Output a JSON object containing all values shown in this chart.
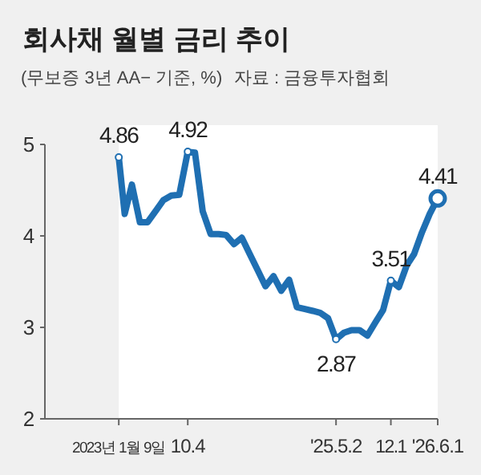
{
  "chart_data": {
    "type": "line",
    "title": "회사채 월별 금리 추이",
    "subtitle": "(무보증 3년 AA− 기준, %)",
    "annotations": [
      "자료 : 금융투자협회",
      {
        "text": "4.86",
        "x": "2023-01-09",
        "y": 4.86
      },
      {
        "text": "4.92",
        "x": "2023-10-04",
        "y": 4.92
      },
      {
        "text": "2.87",
        "x": "2025-05-02",
        "y": 2.87
      },
      {
        "text": "3.51",
        "x": "2025-12-01",
        "y": 3.51
      },
      {
        "text": "4.41",
        "x": "2026-06-01",
        "y": 4.41
      }
    ],
    "x": [
      "2023-01-09",
      "2023-02",
      "2023-03",
      "2023-04",
      "2023-05",
      "2023-06",
      "2023-07",
      "2023-08",
      "2023-09",
      "2023-10-04",
      "2023-11",
      "2023-12",
      "2024-01",
      "2024-02",
      "2024-03",
      "2024-04",
      "2024-05",
      "2024-06",
      "2024-07",
      "2024-08",
      "2024-09",
      "2024-10",
      "2024-11",
      "2024-12",
      "2025-01",
      "2025-02",
      "2025-03",
      "2025-04",
      "2025-05-02",
      "2025-06",
      "2025-07",
      "2025-08",
      "2025-09",
      "2025-10",
      "2025-11",
      "2025-12-01",
      "2026-01",
      "2026-02",
      "2026-03",
      "2026-04",
      "2026-05",
      "2026-06-01"
    ],
    "series": [
      {
        "color": "#1f6fb2",
        "values": [
          4.86,
          4.24,
          4.56,
          4.15,
          4.15,
          4.27,
          4.39,
          4.44,
          4.45,
          4.92,
          4.91,
          4.27,
          4.02,
          4.02,
          4.01,
          3.91,
          3.98,
          3.8,
          3.63,
          3.45,
          3.56,
          3.4,
          3.52,
          3.22,
          3.2,
          3.18,
          3.16,
          3.1,
          2.87,
          2.94,
          2.97,
          2.97,
          2.91,
          3.05,
          3.19,
          3.51,
          3.44,
          3.68,
          3.8,
          4.04,
          4.24,
          4.41
        ]
      }
    ],
    "bands": [
      {
        "axis": "x",
        "from": "2023-01-09",
        "to": "2026-06-01",
        "color": "#ffffff"
      }
    ],
    "xlim": [
      "2022-03-28",
      "2026-06-01"
    ],
    "xticks": [
      {
        "value": "2023-01-09",
        "label": "2023년 1월 9일"
      },
      {
        "value": "2023-10-04",
        "label": "10.4"
      },
      {
        "value": "2025-05-02",
        "label": "'25.5.2"
      },
      {
        "value": "2025-12-01",
        "label": "12.1"
      },
      {
        "value": "2026-06-01",
        "label": "'26.6.1"
      }
    ],
    "ylim": [
      2,
      5
    ],
    "yticks": [
      2,
      3,
      4,
      5
    ],
    "grid": false,
    "marker": "none",
    "line_style": "solid"
  }
}
